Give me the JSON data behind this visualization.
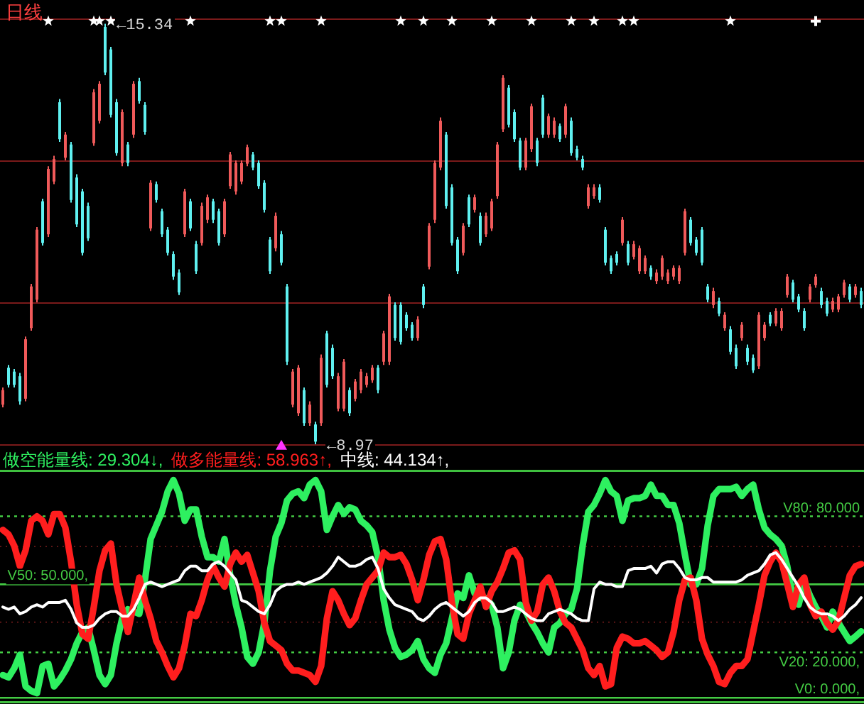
{
  "chart_data": [
    {
      "type": "candlestick",
      "title": "日线",
      "categories": [
        null,
        null,
        null,
        null,
        null,
        null,
        null,
        null,
        null,
        null,
        null,
        null,
        null,
        null,
        null,
        null,
        null,
        null,
        null,
        null,
        null,
        null,
        null,
        null,
        null,
        null,
        null,
        null,
        null,
        null,
        null,
        null,
        null,
        null,
        null,
        null,
        null,
        null,
        null,
        null,
        null,
        null,
        null,
        null,
        null,
        null,
        null,
        null,
        null,
        null,
        null,
        null,
        null,
        null,
        null,
        null,
        null,
        null,
        null,
        null,
        null,
        null,
        null,
        null,
        null,
        null,
        null,
        null,
        null,
        null,
        null,
        null,
        null,
        null,
        null,
        null,
        null,
        null,
        null,
        null,
        null,
        null,
        null,
        null,
        null,
        null,
        null,
        null,
        null,
        null,
        null,
        null,
        null,
        null,
        null,
        null,
        null,
        null,
        null,
        null,
        null,
        null,
        null,
        null,
        null,
        null,
        null,
        null,
        null,
        null,
        null,
        null,
        null,
        null,
        null,
        null,
        null,
        null,
        null,
        null,
        null,
        null,
        null,
        null,
        null,
        null,
        null,
        null,
        null,
        null,
        null,
        null,
        null,
        null,
        null,
        null,
        null,
        null,
        null,
        null,
        null,
        null,
        null,
        null,
        null,
        null,
        null,
        null,
        null,
        null,
        null,
        null
      ],
      "ohlc": [
        [
          9.57,
          9.83,
          9.53,
          9.79
        ],
        [
          10.13,
          10.17,
          9.83,
          9.87
        ],
        [
          10.07,
          10.11,
          9.83,
          9.87
        ],
        [
          10.0,
          10.05,
          9.57,
          9.62
        ],
        [
          9.66,
          10.6,
          9.62,
          10.56
        ],
        [
          10.73,
          11.4,
          10.69,
          11.36
        ],
        [
          11.16,
          12.26,
          11.12,
          12.22
        ],
        [
          12.65,
          12.69,
          11.98,
          12.02
        ],
        [
          12.15,
          13.18,
          12.11,
          13.14
        ],
        [
          12.95,
          13.34,
          12.91,
          13.29
        ],
        [
          14.15,
          14.2,
          13.55,
          13.59
        ],
        [
          13.31,
          13.7,
          13.27,
          13.66
        ],
        [
          13.51,
          13.55,
          12.63,
          12.67
        ],
        [
          13.01,
          13.06,
          12.26,
          12.3
        ],
        [
          12.8,
          12.84,
          11.83,
          11.87
        ],
        [
          12.58,
          12.63,
          12.05,
          12.09
        ],
        [
          13.53,
          14.35,
          13.49,
          14.3
        ],
        [
          13.87,
          14.47,
          13.83,
          14.43
        ],
        [
          15.29,
          15.34,
          14.56,
          14.6
        ],
        [
          14.95,
          14.99,
          13.92,
          13.96
        ],
        [
          14.15,
          14.2,
          13.34,
          13.38
        ],
        [
          13.23,
          14.04,
          13.18,
          14.0
        ],
        [
          13.51,
          13.55,
          13.18,
          13.23
        ],
        [
          13.66,
          14.47,
          13.61,
          14.43
        ],
        [
          14.47,
          14.52,
          14.13,
          14.17
        ],
        [
          14.11,
          14.15,
          13.66,
          13.7
        ],
        [
          12.24,
          12.97,
          12.2,
          12.93
        ],
        [
          12.91,
          12.95,
          12.63,
          12.67
        ],
        [
          12.5,
          12.54,
          12.11,
          12.15
        ],
        [
          12.22,
          12.26,
          11.83,
          11.87
        ],
        [
          11.85,
          11.89,
          11.46,
          11.51
        ],
        [
          11.57,
          11.62,
          11.23,
          11.27
        ],
        [
          12.15,
          12.84,
          12.11,
          12.8
        ],
        [
          12.65,
          12.69,
          12.2,
          12.24
        ],
        [
          12.0,
          12.05,
          11.55,
          11.59
        ],
        [
          12.02,
          12.63,
          11.98,
          12.58
        ],
        [
          12.37,
          12.75,
          12.32,
          12.71
        ],
        [
          12.65,
          12.69,
          12.32,
          12.37
        ],
        [
          12.5,
          12.54,
          11.98,
          12.02
        ],
        [
          12.15,
          12.69,
          12.11,
          12.65
        ],
        [
          12.88,
          13.4,
          12.84,
          13.36
        ],
        [
          12.8,
          13.27,
          12.75,
          13.23
        ],
        [
          12.95,
          13.27,
          12.91,
          13.23
        ],
        [
          13.22,
          13.51,
          13.18,
          13.47
        ],
        [
          13.36,
          13.4,
          13.12,
          13.16
        ],
        [
          13.23,
          13.27,
          12.84,
          12.88
        ],
        [
          12.93,
          12.97,
          12.48,
          12.52
        ],
        [
          12.07,
          12.11,
          11.55,
          11.59
        ],
        [
          11.94,
          12.48,
          11.89,
          12.43
        ],
        [
          12.15,
          12.2,
          11.68,
          11.72
        ],
        [
          11.36,
          11.4,
          10.17,
          10.22
        ],
        [
          9.57,
          10.11,
          9.53,
          10.07
        ],
        [
          9.44,
          10.17,
          9.4,
          10.13
        ],
        [
          9.79,
          9.83,
          9.25,
          9.29
        ],
        [
          9.29,
          9.62,
          9.25,
          9.57
        ],
        [
          9.27,
          9.31,
          8.97,
          9.01
        ],
        [
          9.29,
          10.33,
          9.25,
          10.28
        ],
        [
          10.65,
          10.69,
          9.83,
          9.87
        ],
        [
          10.43,
          10.48,
          9.96,
          10.0
        ],
        [
          9.51,
          10.05,
          9.47,
          10.0
        ],
        [
          9.51,
          10.26,
          9.47,
          10.22
        ],
        [
          9.79,
          9.83,
          9.4,
          9.44
        ],
        [
          9.66,
          9.96,
          9.62,
          9.92
        ],
        [
          9.79,
          10.11,
          9.74,
          10.07
        ],
        [
          9.87,
          10.05,
          9.83,
          10.0
        ],
        [
          9.94,
          10.17,
          9.9,
          10.13
        ],
        [
          10.13,
          10.17,
          9.74,
          9.79
        ],
        [
          10.22,
          10.69,
          10.17,
          10.65
        ],
        [
          10.22,
          11.25,
          10.17,
          11.21
        ],
        [
          11.08,
          11.12,
          10.54,
          10.58
        ],
        [
          11.08,
          11.12,
          10.48,
          10.52
        ],
        [
          10.93,
          10.97,
          10.69,
          10.73
        ],
        [
          10.78,
          10.82,
          10.54,
          10.58
        ],
        [
          10.58,
          10.91,
          10.54,
          10.86
        ],
        [
          11.36,
          11.4,
          11.03,
          11.08
        ],
        [
          11.66,
          12.32,
          11.62,
          12.28
        ],
        [
          12.37,
          13.27,
          12.32,
          13.23
        ],
        [
          13.16,
          13.92,
          13.12,
          13.87
        ],
        [
          13.66,
          13.7,
          12.54,
          12.58
        ],
        [
          12.86,
          12.91,
          11.98,
          12.02
        ],
        [
          12.07,
          12.11,
          11.55,
          11.59
        ],
        [
          11.87,
          12.32,
          11.83,
          12.28
        ],
        [
          12.71,
          12.75,
          12.26,
          12.3
        ],
        [
          12.52,
          12.75,
          12.48,
          12.71
        ],
        [
          12.43,
          12.48,
          11.98,
          12.02
        ],
        [
          12.15,
          12.48,
          12.11,
          12.43
        ],
        [
          12.24,
          12.69,
          12.2,
          12.65
        ],
        [
          12.73,
          13.55,
          12.69,
          13.51
        ],
        [
          13.74,
          14.56,
          13.7,
          14.52
        ],
        [
          14.37,
          14.41,
          13.77,
          13.81
        ],
        [
          14.0,
          14.04,
          13.55,
          13.59
        ],
        [
          13.57,
          13.61,
          13.12,
          13.16
        ],
        [
          13.16,
          13.61,
          13.12,
          13.57
        ],
        [
          13.44,
          14.13,
          13.4,
          14.09
        ],
        [
          13.57,
          13.61,
          13.18,
          13.23
        ],
        [
          14.22,
          14.26,
          13.61,
          13.66
        ],
        [
          13.66,
          13.98,
          13.61,
          13.94
        ],
        [
          13.66,
          13.92,
          13.61,
          13.87
        ],
        [
          13.79,
          13.83,
          13.55,
          13.59
        ],
        [
          13.66,
          14.13,
          13.61,
          14.09
        ],
        [
          13.87,
          13.92,
          13.34,
          13.38
        ],
        [
          13.44,
          13.49,
          13.27,
          13.31
        ],
        [
          13.29,
          13.34,
          13.12,
          13.16
        ],
        [
          12.58,
          12.91,
          12.54,
          12.86
        ],
        [
          12.73,
          12.91,
          12.69,
          12.86
        ],
        [
          12.86,
          12.91,
          12.63,
          12.67
        ],
        [
          12.22,
          12.26,
          11.68,
          11.72
        ],
        [
          11.79,
          11.83,
          11.55,
          11.59
        ],
        [
          11.85,
          11.89,
          11.68,
          11.72
        ],
        [
          12.02,
          12.41,
          11.98,
          12.37
        ],
        [
          12.0,
          12.05,
          11.68,
          11.72
        ],
        [
          11.81,
          12.05,
          11.77,
          12.0
        ],
        [
          11.59,
          11.98,
          11.55,
          11.94
        ],
        [
          11.59,
          11.83,
          11.55,
          11.79
        ],
        [
          11.64,
          11.68,
          11.46,
          11.51
        ],
        [
          11.44,
          11.62,
          11.4,
          11.57
        ],
        [
          11.51,
          11.83,
          11.46,
          11.79
        ],
        [
          11.44,
          11.62,
          11.4,
          11.57
        ],
        [
          11.51,
          11.68,
          11.46,
          11.64
        ],
        [
          11.44,
          11.68,
          11.4,
          11.64
        ],
        [
          11.87,
          12.54,
          11.83,
          12.5
        ],
        [
          12.37,
          12.41,
          11.98,
          12.02
        ],
        [
          12.07,
          12.11,
          11.83,
          11.87
        ],
        [
          12.22,
          12.26,
          11.68,
          11.72
        ],
        [
          11.36,
          11.4,
          11.12,
          11.16
        ],
        [
          11.08,
          11.34,
          11.03,
          11.29
        ],
        [
          11.14,
          11.19,
          10.91,
          10.95
        ],
        [
          10.73,
          10.97,
          10.69,
          10.93
        ],
        [
          10.71,
          10.76,
          10.33,
          10.37
        ],
        [
          10.43,
          10.48,
          10.11,
          10.15
        ],
        [
          10.58,
          10.82,
          10.54,
          10.78
        ],
        [
          10.43,
          10.48,
          10.17,
          10.22
        ],
        [
          10.28,
          10.33,
          10.05,
          10.09
        ],
        [
          10.15,
          10.97,
          10.11,
          10.93
        ],
        [
          10.58,
          10.82,
          10.54,
          10.78
        ],
        [
          10.93,
          10.97,
          10.76,
          10.8
        ],
        [
          10.8,
          11.03,
          10.76,
          10.99
        ],
        [
          10.73,
          11.03,
          10.69,
          10.99
        ],
        [
          11.23,
          11.55,
          11.19,
          11.51
        ],
        [
          11.42,
          11.46,
          11.12,
          11.16
        ],
        [
          11.21,
          11.25,
          10.97,
          11.01
        ],
        [
          10.99,
          11.03,
          10.69,
          10.73
        ],
        [
          11.16,
          11.4,
          11.12,
          11.36
        ],
        [
          11.38,
          11.55,
          11.34,
          11.51
        ],
        [
          11.29,
          11.34,
          11.03,
          11.08
        ],
        [
          11.14,
          11.19,
          10.91,
          10.95
        ],
        [
          11.01,
          11.19,
          10.97,
          11.14
        ],
        [
          11.01,
          11.25,
          10.97,
          11.21
        ],
        [
          11.23,
          11.46,
          11.19,
          11.42
        ],
        [
          11.36,
          11.4,
          11.12,
          11.16
        ],
        [
          11.23,
          11.4,
          11.19,
          11.36
        ],
        [
          11.29,
          11.34,
          11.03,
          11.08
        ]
      ],
      "colors": [
        "#f05a5a",
        "#5ff0f0",
        "#5ff0f0",
        "#5ff0f0",
        "#f05a5a",
        "#f05a5a",
        "#f05a5a",
        "#5ff0f0",
        "#f05a5a",
        "#f05a5a",
        "#5ff0f0",
        "#f05a5a",
        "#5ff0f0",
        "#5ff0f0",
        "#5ff0f0",
        "#5ff0f0",
        "#f05a5a",
        "#f05a5a",
        "#5ff0f0",
        "#5ff0f0",
        "#5ff0f0",
        "#f05a5a",
        "#5ff0f0",
        "#f05a5a",
        "#5ff0f0",
        "#5ff0f0",
        "#f05a5a",
        "#5ff0f0",
        "#5ff0f0",
        "#5ff0f0",
        "#5ff0f0",
        "#5ff0f0",
        "#f05a5a",
        "#5ff0f0",
        "#5ff0f0",
        "#f05a5a",
        "#f05a5a",
        "#5ff0f0",
        "#5ff0f0",
        "#f05a5a",
        "#f05a5a",
        "#f05a5a",
        "#f05a5a",
        "#f05a5a",
        "#5ff0f0",
        "#5ff0f0",
        "#5ff0f0",
        "#5ff0f0",
        "#f05a5a",
        "#5ff0f0",
        "#5ff0f0",
        "#f05a5a",
        "#f05a5a",
        "#5ff0f0",
        "#f05a5a",
        "#5ff0f0",
        "#f05a5a",
        "#5ff0f0",
        "#5ff0f0",
        "#f05a5a",
        "#f05a5a",
        "#5ff0f0",
        "#f05a5a",
        "#f05a5a",
        "#f05a5a",
        "#f05a5a",
        "#5ff0f0",
        "#f05a5a",
        "#f05a5a",
        "#5ff0f0",
        "#5ff0f0",
        "#5ff0f0",
        "#5ff0f0",
        "#f05a5a",
        "#5ff0f0",
        "#f05a5a",
        "#f05a5a",
        "#f05a5a",
        "#5ff0f0",
        "#5ff0f0",
        "#5ff0f0",
        "#f05a5a",
        "#5ff0f0",
        "#f05a5a",
        "#5ff0f0",
        "#f05a5a",
        "#f05a5a",
        "#f05a5a",
        "#f05a5a",
        "#5ff0f0",
        "#5ff0f0",
        "#5ff0f0",
        "#f05a5a",
        "#f05a5a",
        "#5ff0f0",
        "#5ff0f0",
        "#f05a5a",
        "#f05a5a",
        "#5ff0f0",
        "#f05a5a",
        "#5ff0f0",
        "#5ff0f0",
        "#5ff0f0",
        "#f05a5a",
        "#f05a5a",
        "#5ff0f0",
        "#5ff0f0",
        "#5ff0f0",
        "#5ff0f0",
        "#f05a5a",
        "#5ff0f0",
        "#f05a5a",
        "#f05a5a",
        "#f05a5a",
        "#5ff0f0",
        "#f05a5a",
        "#f05a5a",
        "#f05a5a",
        "#f05a5a",
        "#f05a5a",
        "#f05a5a",
        "#5ff0f0",
        "#5ff0f0",
        "#5ff0f0",
        "#5ff0f0",
        "#f05a5a",
        "#5ff0f0",
        "#f05a5a",
        "#5ff0f0",
        "#5ff0f0",
        "#f05a5a",
        "#5ff0f0",
        "#5ff0f0",
        "#f05a5a",
        "#f05a5a",
        "#5ff0f0",
        "#f05a5a",
        "#f05a5a",
        "#f05a5a",
        "#5ff0f0",
        "#5ff0f0",
        "#5ff0f0",
        "#f05a5a",
        "#f05a5a",
        "#5ff0f0",
        "#5ff0f0",
        "#f05a5a",
        "#f05a5a",
        "#f05a5a",
        "#5ff0f0",
        "#f05a5a",
        "#5ff0f0"
      ],
      "yticks": [
        {
          "value": 8.96,
          "label": null
        },
        {
          "value": 11.11,
          "label": null
        },
        {
          "value": 13.26,
          "label": null
        },
        {
          "value": 15.41,
          "label": null
        }
      ],
      "grid": "y",
      "annotations": [
        {
          "text": "←15.34",
          "y": 15.34
        },
        {
          "text": "←8.97",
          "y": 8.97
        }
      ],
      "series": [
        {
          "type": "scatter",
          "marker": "star",
          "color": "#ffffff",
          "values": [
            null,
            null,
            null,
            null,
            null,
            null,
            null,
            null,
            15.38,
            null,
            null,
            null,
            null,
            null,
            null,
            null,
            15.38,
            15.38,
            null,
            15.38,
            null,
            null,
            null,
            null,
            null,
            null,
            null,
            null,
            null,
            null,
            null,
            null,
            null,
            15.38,
            null,
            null,
            null,
            null,
            null,
            null,
            null,
            null,
            null,
            null,
            null,
            null,
            null,
            15.38,
            null,
            15.38,
            null,
            null,
            null,
            null,
            null,
            null,
            15.38,
            null,
            null,
            null,
            null,
            null,
            null,
            null,
            null,
            null,
            null,
            null,
            null,
            null,
            15.38,
            null,
            null,
            null,
            15.38,
            null,
            null,
            null,
            null,
            15.38,
            null,
            null,
            null,
            null,
            null,
            null,
            15.38,
            null,
            null,
            null,
            null,
            null,
            null,
            15.38,
            null,
            null,
            null,
            null,
            null,
            null,
            15.38,
            null,
            null,
            null,
            15.38,
            null,
            null,
            null,
            null,
            15.38,
            null,
            15.38,
            null,
            null,
            null,
            null,
            null,
            null,
            null,
            null,
            null,
            null,
            null,
            null,
            null,
            null,
            null,
            null,
            15.38,
            null,
            null,
            null,
            null,
            null,
            null,
            null,
            null,
            null,
            null,
            null,
            null,
            null,
            null,
            null,
            null,
            null,
            null,
            null,
            null,
            null,
            null,
            null
          ]
        },
        {
          "type": "scatter",
          "marker": "cross",
          "color": "#ffffff",
          "values": [
            null,
            null,
            null,
            null,
            null,
            null,
            null,
            null,
            null,
            null,
            null,
            null,
            null,
            null,
            null,
            null,
            null,
            null,
            null,
            null,
            null,
            null,
            null,
            null,
            null,
            null,
            null,
            null,
            null,
            null,
            null,
            null,
            null,
            null,
            null,
            null,
            null,
            null,
            null,
            null,
            null,
            null,
            null,
            null,
            null,
            null,
            null,
            null,
            null,
            null,
            null,
            null,
            null,
            null,
            null,
            null,
            null,
            null,
            null,
            null,
            null,
            null,
            null,
            null,
            null,
            null,
            null,
            null,
            null,
            null,
            null,
            null,
            null,
            null,
            null,
            null,
            null,
            null,
            null,
            null,
            null,
            null,
            null,
            null,
            null,
            null,
            null,
            null,
            null,
            null,
            null,
            null,
            null,
            null,
            null,
            null,
            null,
            null,
            null,
            null,
            null,
            null,
            null,
            null,
            null,
            null,
            null,
            null,
            null,
            null,
            null,
            null,
            null,
            null,
            null,
            null,
            null,
            null,
            null,
            null,
            null,
            null,
            null,
            null,
            null,
            null,
            null,
            null,
            null,
            null,
            null,
            null,
            null,
            null,
            null,
            null,
            null,
            null,
            null,
            null,
            null,
            null,
            null,
            15.38,
            null,
            null,
            null,
            null,
            null,
            null,
            null,
            null
          ]
        },
        {
          "type": "scatter",
          "marker": "triangle",
          "color": "#ff33ff",
          "values": [
            null,
            null,
            null,
            null,
            null,
            null,
            null,
            null,
            null,
            null,
            null,
            null,
            null,
            null,
            null,
            null,
            null,
            null,
            null,
            null,
            null,
            null,
            null,
            null,
            null,
            null,
            null,
            null,
            null,
            null,
            null,
            null,
            null,
            null,
            null,
            null,
            null,
            null,
            null,
            null,
            null,
            null,
            null,
            null,
            null,
            null,
            null,
            null,
            null,
            8.95,
            null,
            null,
            null,
            null,
            null,
            null,
            null,
            null,
            null,
            null,
            null,
            null,
            null,
            null,
            null,
            null,
            null,
            null,
            null,
            null,
            null,
            null,
            null,
            null,
            null,
            null,
            null,
            null,
            null,
            null,
            null,
            null,
            null,
            null,
            null,
            null,
            null,
            null,
            null,
            null,
            null,
            null,
            null,
            null,
            null,
            null,
            null,
            null,
            null,
            null,
            null,
            null,
            null,
            null,
            null,
            null,
            null,
            null,
            null,
            null,
            null,
            null,
            null,
            null,
            null,
            null,
            null,
            null,
            null,
            null,
            null,
            null,
            null,
            null,
            null,
            null,
            null,
            null,
            null,
            null,
            null,
            null,
            null,
            null,
            null,
            null,
            null,
            null,
            null,
            null,
            null,
            null,
            null,
            null,
            null,
            null,
            null,
            null,
            null,
            null,
            null,
            null
          ]
        }
      ]
    },
    {
      "type": "line",
      "categories": [
        null,
        null,
        null,
        null,
        null,
        null,
        null,
        null,
        null,
        null,
        null,
        null,
        null,
        null,
        null,
        null,
        null,
        null,
        null,
        null,
        null,
        null,
        null,
        null,
        null,
        null,
        null,
        null,
        null,
        null,
        null,
        null,
        null,
        null,
        null,
        null,
        null,
        null,
        null,
        null,
        null,
        null,
        null,
        null,
        null,
        null,
        null,
        null,
        null,
        null,
        null,
        null,
        null,
        null,
        null,
        null,
        null,
        null,
        null,
        null,
        null,
        null,
        null,
        null,
        null,
        null,
        null,
        null,
        null,
        null,
        null,
        null,
        null,
        null,
        null,
        null,
        null,
        null,
        null,
        null,
        null,
        null,
        null,
        null,
        null,
        null,
        null,
        null,
        null,
        null,
        null,
        null,
        null,
        null,
        null,
        null,
        null,
        null,
        null,
        null,
        null,
        null,
        null,
        null,
        null,
        null,
        null,
        null,
        null,
        null,
        null,
        null,
        null,
        null,
        null,
        null,
        null,
        null,
        null,
        null,
        null,
        null,
        null,
        null,
        null,
        null,
        null,
        null,
        null,
        null,
        null,
        null,
        null,
        null,
        null,
        null,
        null,
        null,
        null,
        null,
        null,
        null,
        null,
        null,
        null,
        null,
        null,
        null,
        null,
        null,
        null,
        null
      ],
      "ylim": [
        -2,
        100
      ],
      "yticks": [
        {
          "value": 33.3,
          "label": null
        },
        {
          "value": 66.7,
          "label": null
        }
      ],
      "grid": "y",
      "legend": "top left",
      "series": [
        {
          "name": "做空能量线: 29.304↓,",
          "color": "#2ef060",
          "values": [
            10,
            9,
            13,
            19,
            5,
            3,
            2,
            14,
            15,
            5,
            8,
            12,
            17,
            24,
            29,
            31,
            21,
            10,
            6,
            10,
            24,
            35,
            39,
            38,
            37,
            52,
            70,
            76,
            82,
            91,
            96,
            90,
            78,
            83,
            83,
            71,
            62,
            62,
            60,
            70,
            54,
            41,
            31,
            18,
            15,
            20,
            33,
            56,
            71,
            77,
            87,
            90,
            91,
            88,
            94,
            96,
            91,
            74,
            80,
            85,
            81,
            84,
            83,
            78,
            76,
            73,
            62,
            43,
            30,
            22,
            18,
            19,
            21,
            25,
            17,
            13,
            11,
            19,
            24,
            35,
            46,
            44,
            54,
            46,
            44,
            44,
            41,
            31,
            13,
            20,
            34,
            41,
            38,
            33,
            29,
            24,
            20,
            31,
            33,
            37,
            39,
            48,
            67,
            82,
            85,
            90,
            96,
            91,
            89,
            78,
            87,
            88,
            88,
            89,
            94,
            89,
            89,
            85,
            85,
            77,
            63,
            50,
            50,
            57,
            76,
            89,
            92,
            92,
            92,
            93,
            89,
            92,
            94,
            83,
            75,
            72,
            70,
            67,
            58,
            44,
            41,
            51,
            45,
            40,
            36,
            31,
            38,
            33,
            29,
            25,
            27,
            29.304
          ]
        },
        {
          "name": "做多能量线: 58.963↑,",
          "color": "#ff1e1e",
          "values": [
            74,
            72,
            67,
            58,
            65,
            78,
            80,
            78,
            72,
            81,
            81,
            75,
            60,
            41,
            28,
            26,
            40,
            56,
            65,
            68,
            50,
            39,
            29,
            41,
            53,
            43,
            35,
            25,
            20,
            14,
            9,
            13,
            23,
            37,
            36,
            43,
            52,
            58,
            53,
            49,
            59,
            64,
            60,
            63,
            55,
            47,
            33,
            25,
            23,
            21,
            15,
            12,
            12,
            11,
            10,
            7,
            14,
            35,
            47,
            43,
            37,
            32,
            35,
            43,
            50,
            53,
            56,
            64,
            62,
            62,
            63,
            59,
            52,
            43,
            52,
            63,
            69,
            70,
            61,
            42,
            28,
            26,
            37,
            43,
            49,
            40,
            47,
            51,
            57,
            64,
            65,
            61,
            42,
            34,
            38,
            50,
            53,
            47,
            38,
            33,
            31,
            26,
            21,
            13,
            10,
            14,
            5,
            6,
            22,
            27,
            26,
            24,
            24,
            25,
            23,
            21,
            18,
            20,
            29,
            43,
            52,
            53,
            43,
            26,
            19,
            14,
            7,
            6,
            11,
            14,
            14,
            17,
            29,
            41,
            54,
            60,
            64,
            60,
            50,
            40,
            50,
            53,
            41,
            36,
            38,
            33,
            30,
            34,
            44,
            54,
            58,
            58.963
          ]
        },
        {
          "name": "中线: 44.134↑,",
          "color": "#ffffff",
          "values": [
            40,
            39,
            40,
            37,
            38,
            40,
            41,
            40,
            42,
            42,
            42,
            43,
            39,
            33,
            31,
            31,
            32,
            35,
            37,
            38,
            38,
            36,
            36,
            39,
            44,
            50,
            51,
            50,
            49,
            50,
            51,
            52,
            56,
            58,
            58,
            56,
            56,
            59,
            60,
            58,
            55,
            52,
            43,
            42,
            40,
            38,
            37,
            41,
            47,
            49,
            50,
            50,
            51,
            50,
            51,
            52,
            53,
            55,
            58,
            62,
            60,
            58,
            58,
            59,
            61,
            62,
            57,
            48,
            44,
            41,
            40,
            39,
            38,
            35,
            34,
            36,
            39,
            41,
            42,
            40,
            38,
            36,
            38,
            42,
            44,
            44,
            42,
            38,
            38,
            39,
            40,
            39,
            37,
            35,
            34,
            34,
            37,
            38,
            39,
            38,
            37,
            35,
            34,
            34,
            48,
            51,
            50,
            50,
            49,
            49,
            56,
            57,
            57,
            57,
            58,
            55,
            59,
            60,
            60,
            57,
            53,
            52,
            52,
            53,
            53,
            51,
            51,
            51,
            51,
            51,
            52,
            54,
            55,
            56,
            59,
            63,
            64,
            61,
            57,
            53,
            49,
            44,
            40,
            38,
            37,
            37,
            36,
            34,
            36,
            39,
            41,
            44.134
          ]
        }
      ],
      "ref_lines": [
        {
          "axis": "y",
          "value": 0,
          "label": "V0: 0.000,",
          "color": "#44cc44",
          "line_style": "solid"
        },
        {
          "axis": "y",
          "value": 20,
          "label": "V20: 20.000,",
          "color": "#44cc44",
          "line_style": "dotted"
        },
        {
          "axis": "y",
          "value": 50,
          "label": "V50: 50.000,",
          "color": "#44cc44",
          "line_style": "solid"
        },
        {
          "axis": "y",
          "value": 80,
          "label": "V80: 80.000",
          "color": "#44cc44",
          "line_style": "dotted"
        }
      ]
    }
  ]
}
